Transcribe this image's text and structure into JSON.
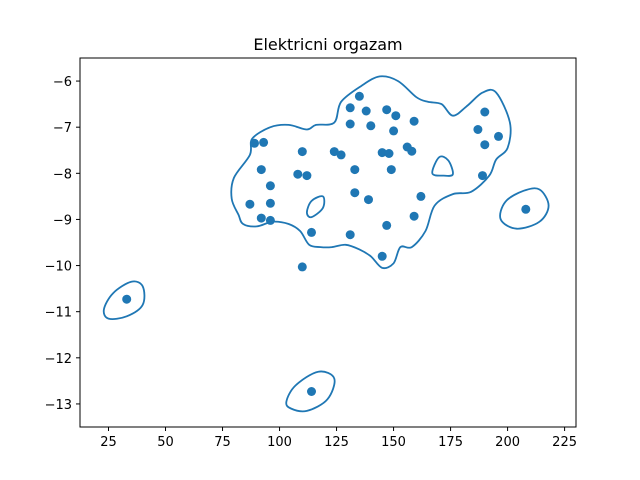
{
  "chart_data": {
    "type": "scatter",
    "title": "Elektricni orgazam",
    "xlabel": "",
    "ylabel": "",
    "xlim": [
      12.5,
      230
    ],
    "ylim": [
      -13.5,
      -5.5
    ],
    "xticks": [
      25,
      50,
      75,
      100,
      125,
      150,
      175,
      200,
      225
    ],
    "yticks": [
      -6,
      -7,
      -8,
      -9,
      -10,
      -11,
      -12,
      -13
    ],
    "xtick_labels": [
      "25",
      "50",
      "75",
      "100",
      "125",
      "150",
      "175",
      "200",
      "225"
    ],
    "ytick_labels": [
      "−6",
      "−7",
      "−8",
      "−9",
      "−10",
      "−11",
      "−12",
      "−13"
    ],
    "grid": false,
    "colors": {
      "points": "#1f77b4",
      "contour": "#1f77b4"
    },
    "points": [
      [
        135,
        -6.33
      ],
      [
        131,
        -6.58
      ],
      [
        138,
        -6.65
      ],
      [
        147,
        -6.62
      ],
      [
        151,
        -6.75
      ],
      [
        131,
        -6.93
      ],
      [
        140,
        -6.97
      ],
      [
        159,
        -6.87
      ],
      [
        150,
        -7.08
      ],
      [
        190,
        -6.67
      ],
      [
        187,
        -7.05
      ],
      [
        196,
        -7.2
      ],
      [
        190,
        -7.38
      ],
      [
        89,
        -7.35
      ],
      [
        93,
        -7.33
      ],
      [
        110,
        -7.53
      ],
      [
        124,
        -7.53
      ],
      [
        127,
        -7.6
      ],
      [
        145,
        -7.55
      ],
      [
        148,
        -7.57
      ],
      [
        156,
        -7.43
      ],
      [
        158,
        -7.52
      ],
      [
        92,
        -7.92
      ],
      [
        133,
        -7.92
      ],
      [
        149,
        -7.92
      ],
      [
        108,
        -8.02
      ],
      [
        112,
        -8.05
      ],
      [
        189,
        -8.05
      ],
      [
        96,
        -8.27
      ],
      [
        133,
        -8.42
      ],
      [
        139,
        -8.57
      ],
      [
        162,
        -8.5
      ],
      [
        87,
        -8.67
      ],
      [
        96,
        -8.65
      ],
      [
        92,
        -8.97
      ],
      [
        96,
        -9.02
      ],
      [
        159,
        -8.93
      ],
      [
        147,
        -9.13
      ],
      [
        114,
        -9.28
      ],
      [
        131,
        -9.33
      ],
      [
        208,
        -8.78
      ],
      [
        110,
        -10.03
      ],
      [
        145,
        -9.8
      ],
      [
        33,
        -10.73
      ],
      [
        114,
        -12.73
      ]
    ],
    "contours": [
      [
        [
          82,
          -8.9
        ],
        [
          79,
          -8.55
        ],
        [
          80,
          -8.1
        ],
        [
          87,
          -7.6
        ],
        [
          88,
          -7.25
        ],
        [
          96,
          -7.0
        ],
        [
          104,
          -6.95
        ],
        [
          112,
          -7.05
        ],
        [
          116,
          -6.95
        ],
        [
          124,
          -6.9
        ],
        [
          127,
          -6.45
        ],
        [
          136,
          -6.1
        ],
        [
          144,
          -5.9
        ],
        [
          152,
          -6.0
        ],
        [
          160,
          -6.35
        ],
        [
          165,
          -6.45
        ],
        [
          171,
          -6.5
        ],
        [
          176,
          -6.75
        ],
        [
          182,
          -6.55
        ],
        [
          189,
          -6.25
        ],
        [
          195,
          -6.25
        ],
        [
          201,
          -6.9
        ],
        [
          200,
          -7.45
        ],
        [
          195,
          -7.7
        ],
        [
          192,
          -8.05
        ],
        [
          184,
          -8.4
        ],
        [
          176,
          -8.45
        ],
        [
          168,
          -8.7
        ],
        [
          164,
          -9.25
        ],
        [
          158,
          -9.6
        ],
        [
          153,
          -9.6
        ],
        [
          150,
          -9.95
        ],
        [
          145,
          -10.05
        ],
        [
          140,
          -9.8
        ],
        [
          135,
          -9.65
        ],
        [
          129,
          -9.55
        ],
        [
          123,
          -9.6
        ],
        [
          118,
          -9.6
        ],
        [
          113,
          -9.55
        ],
        [
          109,
          -9.25
        ],
        [
          104,
          -9.1
        ],
        [
          97,
          -9.05
        ],
        [
          90,
          -9.15
        ],
        [
          84,
          -9.1
        ],
        [
          82,
          -8.9
        ]
      ],
      [
        [
          167,
          -8.0
        ],
        [
          170,
          -7.65
        ],
        [
          174,
          -7.72
        ],
        [
          176,
          -8.02
        ],
        [
          172,
          -8.05
        ],
        [
          167,
          -8.0
        ]
      ],
      [
        [
          112,
          -8.85
        ],
        [
          114,
          -8.6
        ],
        [
          119,
          -8.5
        ],
        [
          119,
          -8.75
        ],
        [
          114,
          -8.95
        ],
        [
          112,
          -8.85
        ]
      ],
      [
        [
          197,
          -9.0
        ],
        [
          199,
          -8.62
        ],
        [
          207,
          -8.38
        ],
        [
          214,
          -8.35
        ],
        [
          218,
          -8.7
        ],
        [
          214,
          -9.05
        ],
        [
          204,
          -9.2
        ],
        [
          197,
          -9.0
        ]
      ],
      [
        [
          23,
          -10.95
        ],
        [
          27,
          -10.6
        ],
        [
          35,
          -10.35
        ],
        [
          40,
          -10.45
        ],
        [
          40,
          -10.85
        ],
        [
          33,
          -11.1
        ],
        [
          25,
          -11.15
        ],
        [
          23,
          -10.95
        ]
      ],
      [
        [
          103,
          -12.95
        ],
        [
          107,
          -12.6
        ],
        [
          117,
          -12.3
        ],
        [
          124,
          -12.45
        ],
        [
          121,
          -12.9
        ],
        [
          112,
          -13.15
        ],
        [
          105,
          -13.1
        ],
        [
          103,
          -12.95
        ]
      ]
    ]
  }
}
